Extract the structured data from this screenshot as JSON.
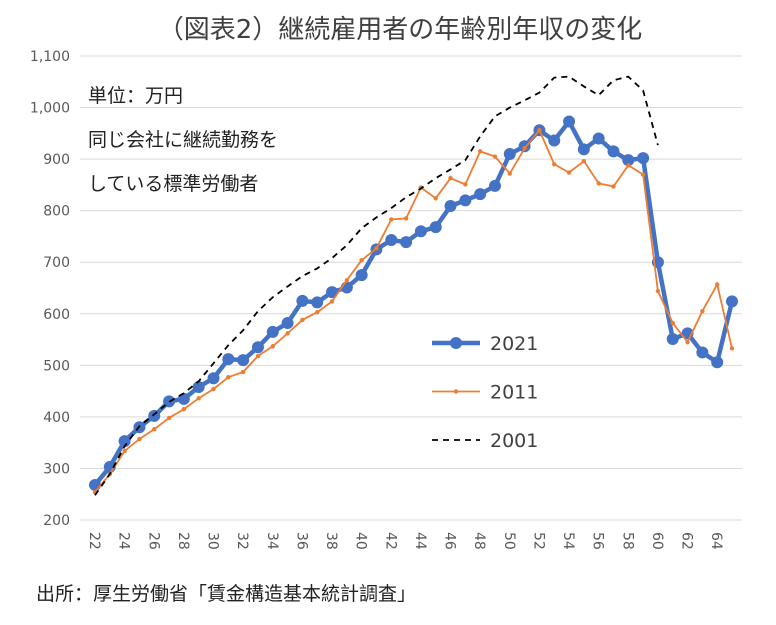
{
  "chart_data": {
    "type": "line",
    "title": "（図表2）継続雇用者の年齢別年収の変化",
    "annotations": [
      "単位：万円",
      "同じ会社に継続勤務を",
      "している標準労働者"
    ],
    "source": "出所：厚生労働省「賃金構造基本統計調査」",
    "x": [
      22,
      23,
      24,
      25,
      26,
      27,
      28,
      29,
      30,
      31,
      32,
      33,
      34,
      35,
      36,
      37,
      38,
      39,
      40,
      41,
      42,
      43,
      44,
      45,
      46,
      47,
      48,
      49,
      50,
      51,
      52,
      53,
      54,
      55,
      56,
      57,
      58,
      59,
      60,
      61,
      62,
      63,
      64,
      65
    ],
    "series": [
      {
        "name": "2021",
        "color": "#4472c4",
        "values": [
          268,
          303,
          353,
          380,
          402,
          430,
          435,
          458,
          475,
          512,
          510,
          535,
          565,
          582,
          625,
          622,
          642,
          651,
          675,
          725,
          743,
          739,
          760,
          768,
          809,
          820,
          832,
          848,
          910,
          925,
          956,
          936,
          973,
          919,
          940,
          915,
          898,
          902,
          700,
          551,
          562,
          525,
          506,
          624
        ]
      },
      {
        "name": "2011",
        "color": "#ed7d31",
        "values": [
          254,
          289,
          334,
          357,
          376,
          398,
          415,
          436,
          454,
          477,
          487,
          518,
          537,
          562,
          588,
          603,
          624,
          665,
          704,
          727,
          783,
          785,
          845,
          824,
          863,
          851,
          915,
          905,
          872,
          921,
          956,
          890,
          874,
          896,
          853,
          847,
          888,
          870,
          644,
          582,
          545,
          605,
          657,
          533
        ]
      },
      {
        "name": "2001",
        "color": "#000000",
        "values": [
          248,
          289,
          343,
          382,
          405,
          429,
          446,
          469,
          504,
          539,
          568,
          605,
          632,
          653,
          673,
          688,
          708,
          733,
          766,
          787,
          805,
          826,
          843,
          863,
          880,
          898,
          944,
          983,
          1000,
          1014,
          1029,
          1058,
          1060,
          1041,
          1024,
          1053,
          1060,
          1033,
          927,
          null,
          null,
          null,
          null,
          null
        ]
      }
    ],
    "xlim": [
      22,
      65
    ],
    "xticks": [
      22,
      24,
      26,
      28,
      30,
      32,
      34,
      36,
      38,
      40,
      42,
      44,
      46,
      48,
      50,
      52,
      54,
      56,
      58,
      60,
      62,
      64
    ],
    "ylim": [
      200,
      1100
    ],
    "yticks": [
      200,
      300,
      400,
      500,
      600,
      700,
      800,
      900,
      {
        "value": 1000,
        "label": "1,000"
      },
      {
        "value": 1100,
        "label": "1,100"
      }
    ],
    "grid": true
  }
}
